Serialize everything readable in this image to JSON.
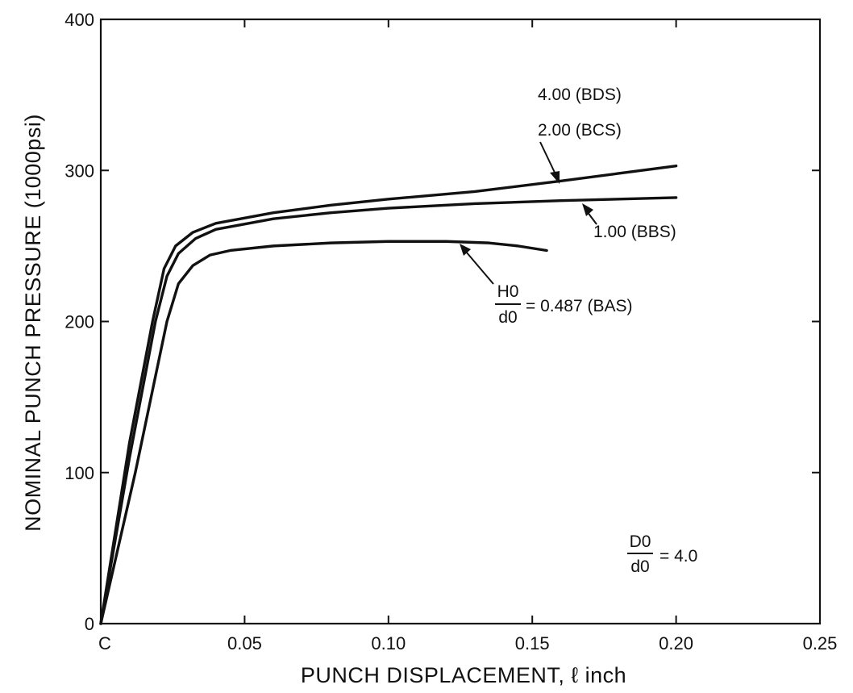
{
  "chart_data": {
    "type": "line",
    "title": "",
    "xlabel": "PUNCH DISPLACEMENT,  ℓ inch",
    "ylabel": "NOMINAL PUNCH PRESSURE (1000psi)",
    "xlim": [
      0,
      0.25
    ],
    "ylim": [
      0,
      400
    ],
    "x_ticks": [
      0,
      0.05,
      0.1,
      0.15,
      0.2,
      0.25
    ],
    "x_tick_labels": [
      "C",
      "0.05",
      "0.10",
      "0.15",
      "0.20",
      "0.25"
    ],
    "y_ticks": [
      0,
      100,
      200,
      300,
      400
    ],
    "y_tick_labels": [
      "0",
      "100",
      "200",
      "300",
      "400"
    ],
    "grid": false,
    "series": [
      {
        "name": "4.00 (BDS)",
        "x": [
          0,
          0.01,
          0.018,
          0.022,
          0.026,
          0.032,
          0.04,
          0.06,
          0.08,
          0.1,
          0.13,
          0.16,
          0.18,
          0.2
        ],
        "y": [
          0,
          120,
          200,
          235,
          250,
          259,
          265,
          272,
          277,
          281,
          286,
          293,
          298,
          303
        ]
      },
      {
        "name": "2.00 (BCS)",
        "x": [
          0,
          0.01,
          0.019,
          0.023,
          0.027,
          0.033,
          0.04,
          0.06,
          0.08,
          0.1,
          0.13,
          0.16,
          0.18,
          0.2
        ],
        "y": [
          0,
          110,
          200,
          230,
          245,
          255,
          261,
          268,
          272,
          275,
          278,
          280,
          281,
          282
        ]
      },
      {
        "name": "H0/d0 = 0.487 (BAS)",
        "x": [
          0,
          0.012,
          0.023,
          0.027,
          0.032,
          0.038,
          0.045,
          0.06,
          0.08,
          0.1,
          0.12,
          0.135,
          0.145,
          0.155
        ],
        "y": [
          0,
          100,
          200,
          225,
          237,
          244,
          247,
          250,
          252,
          253,
          253,
          252,
          250,
          247
        ]
      }
    ],
    "annotations": {
      "bds_label": "4.00 (BDS)",
      "bcs_label": "2.00 (BCS)",
      "bbs_label": "1.00 (BBS)",
      "bas_frac_num": "H0",
      "bas_frac_den": "d0",
      "bas_value": "= 0.487 (BAS)",
      "param_frac_num": "D0",
      "param_frac_den": "d0",
      "param_value": "= 4.0"
    }
  }
}
